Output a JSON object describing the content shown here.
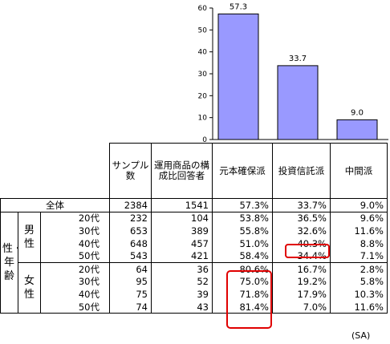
{
  "chart_data": {
    "type": "bar",
    "categories": [
      "元本確保派",
      "投資信託派",
      "中間派"
    ],
    "values": [
      57.3,
      33.7,
      9.0
    ],
    "value_labels": [
      "57.3",
      "33.7",
      "9.0"
    ],
    "ylim": [
      0,
      60
    ],
    "yticks": [
      0,
      10,
      20,
      30,
      40,
      50,
      60
    ],
    "grid": false,
    "bar_color": "#9999ff"
  },
  "table": {
    "headers": [
      "サンプル数",
      "運用商品の構成比回答者",
      "元本確保派",
      "投資信託派",
      "中間派"
    ],
    "total": {
      "label": "全体",
      "values": [
        "2384",
        "1541",
        "57.3%",
        "33.7%",
        "9.0%"
      ]
    },
    "group_label": "性・年齢",
    "groups": [
      {
        "label": "男性",
        "rows": [
          {
            "age": "20代",
            "values": [
              "232",
              "104",
              "53.8%",
              "36.5%",
              "9.6%"
            ]
          },
          {
            "age": "30代",
            "values": [
              "653",
              "389",
              "55.8%",
              "32.6%",
              "11.6%"
            ]
          },
          {
            "age": "40代",
            "values": [
              "648",
              "457",
              "51.0%",
              "40.3%",
              "8.8%"
            ]
          },
          {
            "age": "50代",
            "values": [
              "543",
              "421",
              "58.4%",
              "34.4%",
              "7.1%"
            ]
          }
        ]
      },
      {
        "label": "女性",
        "rows": [
          {
            "age": "20代",
            "values": [
              "64",
              "36",
              "80.6%",
              "16.7%",
              "2.8%"
            ]
          },
          {
            "age": "30代",
            "values": [
              "95",
              "52",
              "75.0%",
              "19.2%",
              "5.8%"
            ]
          },
          {
            "age": "40代",
            "values": [
              "75",
              "39",
              "71.8%",
              "17.9%",
              "10.3%"
            ]
          },
          {
            "age": "50代",
            "values": [
              "74",
              "43",
              "81.4%",
              "7.0%",
              "11.6%"
            ]
          }
        ]
      }
    ]
  },
  "note": "(SA)",
  "highlight_color": "#e00000"
}
